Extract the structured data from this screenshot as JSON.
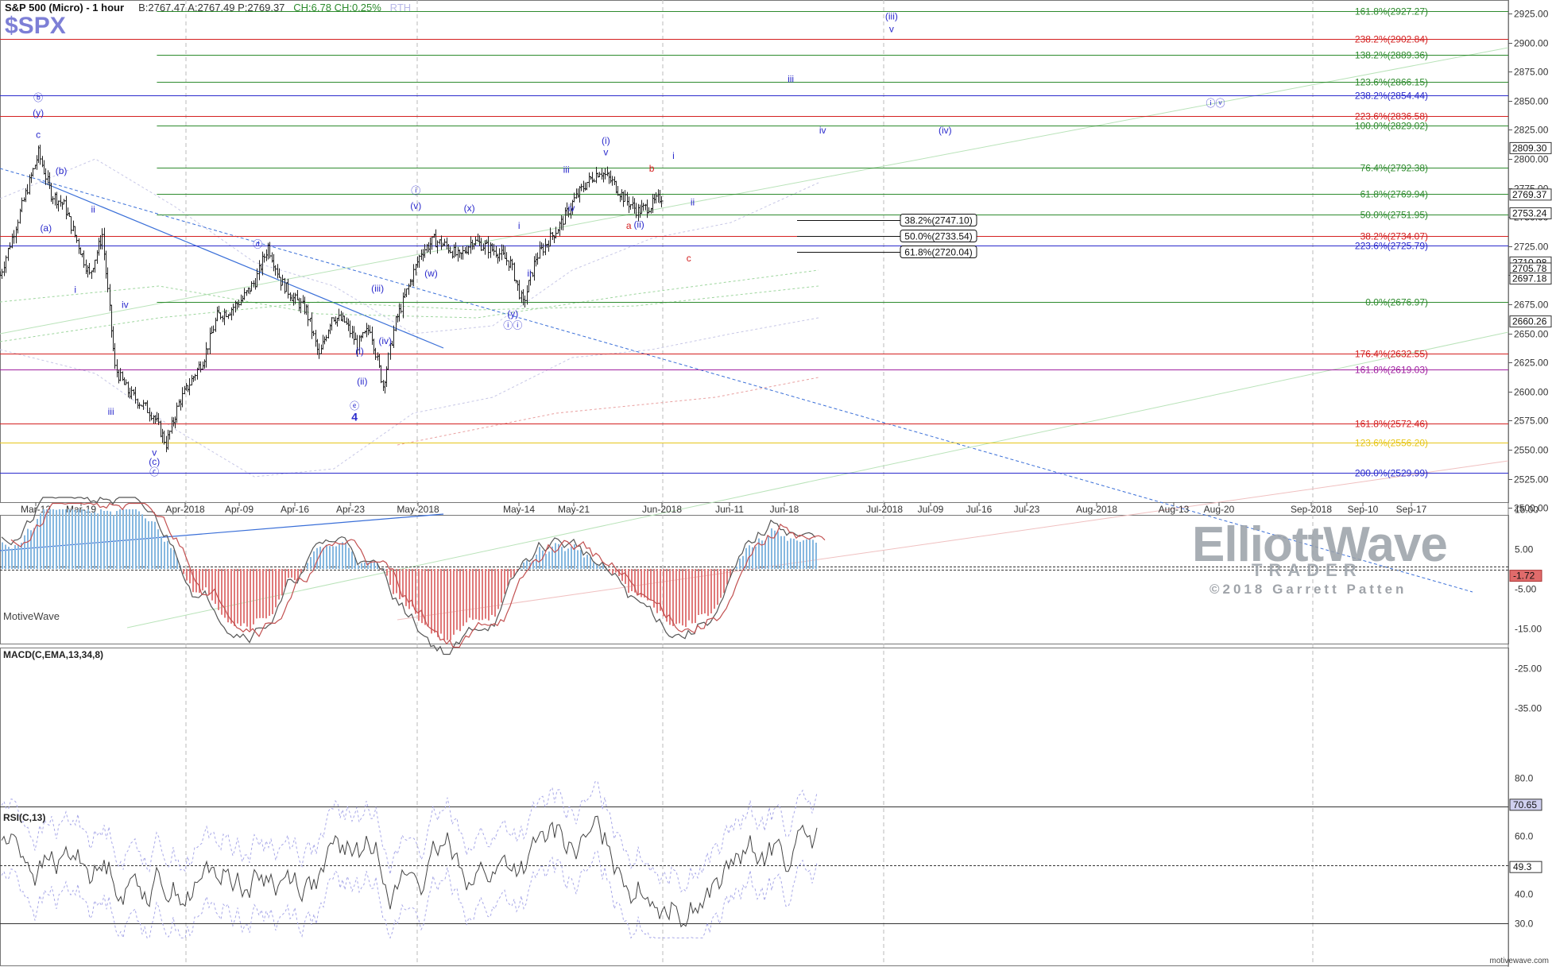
{
  "header": {
    "title": "S&P 500 (Micro) - 1 hour",
    "quote": "B:2767.47  A:2767.49  P:2769.37",
    "change": "CH:6.78  CH:0.25%",
    "session": "RTH",
    "symbol": "$SPX"
  },
  "watermark": {
    "brand": "ElliottWave",
    "sub": "TRADER",
    "copyright": "©2018 Garrett Patten"
  },
  "footer": {
    "platform": "MotiveWave",
    "site": "motivewave.com"
  },
  "colors": {
    "green": "#2e8b2e",
    "red": "#d42020",
    "blue": "#2a2acc",
    "magenta": "#a020a0",
    "yellow": "#e6c619",
    "wave": "#2a2acc"
  },
  "chart_data": [
    {
      "type": "candlestick",
      "title": "S&P 500 (Micro) - 1 hour",
      "ylim": [
        2495,
        2932
      ],
      "y_ticks": [
        2500,
        2525,
        2550,
        2575,
        2600,
        2625,
        2650,
        2675,
        2700,
        2725,
        2750,
        2775,
        2800,
        2825,
        2850,
        2875,
        2900,
        2925
      ],
      "x_ticks": [
        "Mar-12",
        "Mar-19",
        "Apr-2018",
        "Apr-09",
        "Apr-16",
        "Apr-23",
        "May-2018",
        "May-14",
        "May-21",
        "Jun-2018",
        "Jun-11",
        "Jun-18",
        "Jul-2018",
        "Jul-09",
        "Jul-16",
        "Jul-23",
        "Aug-2018",
        "Aug-13",
        "Aug-20",
        "Sep-2018",
        "Sep-10",
        "Sep-17"
      ],
      "price_path": [
        [
          0,
          2700
        ],
        [
          2,
          2770
        ],
        [
          3,
          2805
        ],
        [
          4,
          2770
        ],
        [
          5,
          2760
        ],
        [
          6,
          2730
        ],
        [
          7,
          2700
        ],
        [
          8,
          2735
        ],
        [
          9,
          2620
        ],
        [
          10,
          2600
        ],
        [
          12,
          2580
        ],
        [
          13,
          2555
        ],
        [
          14,
          2590
        ],
        [
          15,
          2610
        ],
        [
          16,
          2630
        ],
        [
          17,
          2665
        ],
        [
          18,
          2670
        ],
        [
          19,
          2680
        ],
        [
          20,
          2695
        ],
        [
          21,
          2725
        ],
        [
          22,
          2695
        ],
        [
          23,
          2680
        ],
        [
          24,
          2670
        ],
        [
          25,
          2630
        ],
        [
          26,
          2665
        ],
        [
          27,
          2660
        ],
        [
          28,
          2640
        ],
        [
          29,
          2655
        ],
        [
          30,
          2605
        ],
        [
          31,
          2660
        ],
        [
          32,
          2690
        ],
        [
          33,
          2720
        ],
        [
          34,
          2730
        ],
        [
          35,
          2725
        ],
        [
          36,
          2715
        ],
        [
          37,
          2730
        ],
        [
          38,
          2725
        ],
        [
          39,
          2720
        ],
        [
          40,
          2710
        ],
        [
          41,
          2675
        ],
        [
          42,
          2715
        ],
        [
          43,
          2730
        ],
        [
          44,
          2745
        ],
        [
          45,
          2765
        ],
        [
          46,
          2780
        ],
        [
          47,
          2790
        ],
        [
          48,
          2780
        ],
        [
          49,
          2765
        ],
        [
          50,
          2755
        ],
        [
          51,
          2760
        ],
        [
          52,
          2769
        ]
      ],
      "price_tags": [
        {
          "value": 2809.3,
          "label": "2809.30"
        },
        {
          "value": 2769.37,
          "label": "2769.37"
        },
        {
          "value": 2753.24,
          "label": "2753.24"
        },
        {
          "value": 2710.98,
          "label": "2710.98"
        },
        {
          "value": 2705.78,
          "label": "2705.78"
        },
        {
          "value": 2697.18,
          "label": "2697.18"
        },
        {
          "value": 2660.26,
          "label": "2660.26"
        }
      ],
      "fib_levels": [
        {
          "label": "161.8%(2927.27)",
          "value": 2927.27,
          "color": "green",
          "start": 12.3
        },
        {
          "label": "238.2%(2902.84)",
          "value": 2902.84,
          "color": "red",
          "start": 0
        },
        {
          "label": "138.2%(2889.36)",
          "value": 2889.36,
          "color": "green",
          "start": 12.3
        },
        {
          "label": "123.6%(2866.15)",
          "value": 2866.15,
          "color": "green",
          "start": 12.3
        },
        {
          "label": "238.2%(2854.44)",
          "value": 2854.44,
          "color": "blue",
          "start": 0
        },
        {
          "label": "223.6%(2836.58)",
          "value": 2836.58,
          "color": "red",
          "start": 0
        },
        {
          "label": "100.0%(2829.02)",
          "value": 2829.02,
          "color": "green",
          "start": 12.3
        },
        {
          "label": "76.4%(2792.38)",
          "value": 2792.38,
          "color": "green",
          "start": 12.3
        },
        {
          "label": "61.8%(2769.94)",
          "value": 2769.94,
          "color": "green",
          "start": 12.3
        },
        {
          "label": "50.0%(2751.95)",
          "value": 2751.95,
          "color": "green",
          "start": 12.3
        },
        {
          "label": "38.2%(2734.07)",
          "value": 2734.07,
          "color": "red",
          "start": 0
        },
        {
          "label": "223.6%(2725.79)",
          "value": 2725.79,
          "color": "blue",
          "start": 0
        },
        {
          "label": "0.0%(2676.97)",
          "value": 2676.97,
          "color": "green",
          "start": 12.3
        },
        {
          "label": "176.4%(2632.55)",
          "value": 2632.55,
          "color": "red",
          "start": 0
        },
        {
          "label": "161.8%(2619.03)",
          "value": 2619.03,
          "color": "magenta",
          "start": 0
        },
        {
          "label": "161.8%(2572.46)",
          "value": 2572.46,
          "color": "red",
          "start": 0
        },
        {
          "label": "123.6%(2556.20)",
          "value": 2556.2,
          "color": "yellow",
          "start": 0
        },
        {
          "label": "200.0%(2529.99)",
          "value": 2529.99,
          "color": "blue",
          "start": 0
        }
      ],
      "boxed_levels": [
        {
          "label": "38.2%(2747.10)",
          "value": 2747.1
        },
        {
          "label": "50.0%(2733.54)",
          "value": 2733.54
        },
        {
          "label": "61.8%(2720.04)",
          "value": 2720.04
        }
      ],
      "wave_labels": [
        {
          "text": "ⓑ",
          "x": 3,
          "y": 2850
        },
        {
          "text": "(y)",
          "x": 3,
          "y": 2837
        },
        {
          "text": "c",
          "x": 3,
          "y": 2818
        },
        {
          "text": "(b)",
          "x": 4.8,
          "y": 2787
        },
        {
          "text": "(a)",
          "x": 3.6,
          "y": 2738
        },
        {
          "text": "ii",
          "x": 7.3,
          "y": 2754
        },
        {
          "text": "i",
          "x": 5.9,
          "y": 2685
        },
        {
          "text": "iv",
          "x": 9.8,
          "y": 2672
        },
        {
          "text": "iii",
          "x": 8.7,
          "y": 2580
        },
        {
          "text": "v",
          "x": 12.1,
          "y": 2545
        },
        {
          "text": "(c)",
          "x": 12.1,
          "y": 2537
        },
        {
          "text": "ⓒ",
          "x": 12.1,
          "y": 2528
        },
        {
          "text": "ⓓ",
          "x": 20.2,
          "y": 2724
        },
        {
          "text": "(iii)",
          "x": 29.6,
          "y": 2686
        },
        {
          "text": "(iv)",
          "x": 30.2,
          "y": 2641
        },
        {
          "text": "(i)",
          "x": 28.2,
          "y": 2632
        },
        {
          "text": "(ii)",
          "x": 28.4,
          "y": 2606
        },
        {
          "text": "ⓔ",
          "x": 27.8,
          "y": 2585
        },
        {
          "text": "4",
          "x": 27.8,
          "y": 2575
        },
        {
          "text": "ⓘ",
          "x": 32.6,
          "y": 2770
        },
        {
          "text": "(v)",
          "x": 32.6,
          "y": 2757
        },
        {
          "text": "(w)",
          "x": 33.8,
          "y": 2699
        },
        {
          "text": "(x)",
          "x": 36.8,
          "y": 2755
        },
        {
          "text": "(y)",
          "x": 40.2,
          "y": 2664
        },
        {
          "text": "ⓘⓘ",
          "x": 40.2,
          "y": 2654
        },
        {
          "text": "i",
          "x": 40.7,
          "y": 2740
        },
        {
          "text": "ii",
          "x": 41.5,
          "y": 2699
        },
        {
          "text": "iii",
          "x": 44.4,
          "y": 2788
        },
        {
          "text": "iv",
          "x": 44.8,
          "y": 2755
        },
        {
          "text": "(i)",
          "x": 47.5,
          "y": 2813
        },
        {
          "text": "v",
          "x": 47.5,
          "y": 2803
        },
        {
          "text": "b",
          "x": 51.1,
          "y": 2789,
          "color": "red"
        },
        {
          "text": "a",
          "x": 49.3,
          "y": 2740,
          "color": "red"
        },
        {
          "text": "(ii)",
          "x": 50.1,
          "y": 2741
        },
        {
          "text": "c",
          "x": 54.0,
          "y": 2712,
          "color": "red"
        },
        {
          "text": "i",
          "x": 52.8,
          "y": 2800
        },
        {
          "text": "ii",
          "x": 54.3,
          "y": 2760
        },
        {
          "text": "iii",
          "x": 62.0,
          "y": 2866
        },
        {
          "text": "iv",
          "x": 64.5,
          "y": 2822
        },
        {
          "text": "(iii)",
          "x": 69.9,
          "y": 2920
        },
        {
          "text": "v",
          "x": 69.9,
          "y": 2909
        },
        {
          "text": "(iv)",
          "x": 74.1,
          "y": 2822
        },
        {
          "text": "ⓘⓥ",
          "x": 95.3,
          "y": 2845
        }
      ]
    },
    {
      "type": "line",
      "title": "MACD(C,EMA,13,34,8)",
      "ylim": [
        -38,
        20
      ],
      "y_ticks": [
        15,
        5,
        -5,
        -15,
        -25,
        -35
      ],
      "y_tick_labels": [
        "15.00",
        "5.00",
        "-5.00",
        "-15.00",
        "-25.00",
        "-35.00"
      ],
      "value_tag": {
        "value": -1.72,
        "label": "-1.72"
      }
    },
    {
      "type": "line",
      "title": "RSI(C,13)",
      "ylim": [
        25,
        85
      ],
      "y_ticks": [
        80,
        70,
        60,
        50,
        40,
        30
      ],
      "y_tick_labels": [
        "80.0",
        "70.0",
        "60.0",
        "50.0",
        "40.0",
        "30.0"
      ],
      "value_tags": [
        {
          "value": 70.65,
          "label": "70.65"
        },
        {
          "value": 49.3,
          "label": "49.3"
        }
      ],
      "overbought": 70,
      "oversold": 30
    }
  ]
}
